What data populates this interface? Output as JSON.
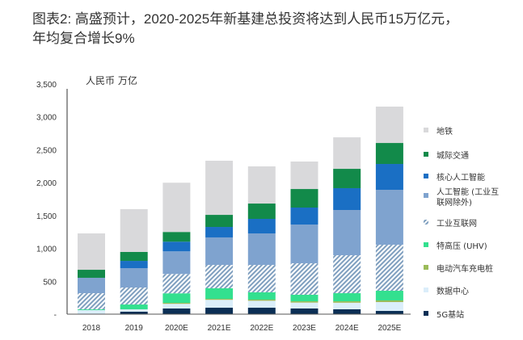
{
  "title": {
    "line1": "图表2: 高盛预计，2020-2025年新基建总投资将达到人民币15万亿元，",
    "line2": "年均复合增长9%"
  },
  "chart_data": {
    "type": "bar",
    "stacked": true,
    "title": "图表2: 高盛预计，2020-2025年新基建总投资将达到人民币15万亿元，年均复合增长9%",
    "unit_label": "人民币 万亿",
    "xlabel": "",
    "ylabel": "人民币 万亿",
    "ylim": [
      0,
      3500
    ],
    "yticks": [
      0,
      500,
      1000,
      1500,
      2000,
      2500,
      3000,
      3500
    ],
    "ytick_labels": [
      "-",
      "500",
      "1,000",
      "1,500",
      "2,000",
      "2,500",
      "3,000",
      "3,500"
    ],
    "grid": false,
    "legend_position": "right",
    "categories": [
      "2018",
      "2019",
      "2020E",
      "2021E",
      "2022E",
      "2023E",
      "2024E",
      "2025E"
    ],
    "series": [
      {
        "name": "5G基站",
        "color": "#0b2f55",
        "pattern": "solid",
        "values": [
          0,
          37,
          86,
          98,
          98,
          86,
          74,
          49
        ]
      },
      {
        "name": "数据中心",
        "color": "#dbeefa",
        "pattern": "solid",
        "values": [
          61,
          37,
          71,
          120,
          106,
          90,
          100,
          135
        ]
      },
      {
        "name": "电动汽车充电桩",
        "color": "#9bbb59",
        "pattern": "solid",
        "values": [
          0,
          0,
          15,
          15,
          17,
          20,
          22,
          25
        ]
      },
      {
        "name": "特高压 (UHV)",
        "color": "#33e08f",
        "pattern": "solid",
        "values": [
          12,
          73,
          145,
          160,
          111,
          99,
          123,
          147
        ]
      },
      {
        "name": "工业互联网",
        "color": "#7f9fbf",
        "pattern": "hatch",
        "values": [
          246,
          258,
          294,
          356,
          417,
          479,
          577,
          700
        ]
      },
      {
        "name": "人工智能 (工业互联网除外)",
        "color": "#7fa3cf",
        "pattern": "solid",
        "values": [
          234,
          295,
          344,
          418,
          479,
          589,
          688,
          835
        ]
      },
      {
        "name": "核心人工智能",
        "color": "#1a6fc4",
        "pattern": "solid",
        "values": [
          0,
          110,
          147,
          159,
          221,
          258,
          332,
          393
        ]
      },
      {
        "name": "城际交通",
        "color": "#128a4a",
        "pattern": "solid",
        "values": [
          122,
          136,
          148,
          184,
          233,
          282,
          294,
          319
        ]
      },
      {
        "name": "地铁",
        "color": "#d9d9db",
        "pattern": "solid",
        "values": [
          553,
          651,
          749,
          823,
          565,
          418,
          479,
          553
        ]
      }
    ],
    "legend_order": [
      "地铁",
      "城际交通",
      "核心人工智能",
      "人工智能 (工业互联网除外)",
      "工业互联网",
      "特高压 (UHV)",
      "电动汽车充电桩",
      "数据中心",
      "5G基站"
    ],
    "legend_lines": {
      "人工智能 (工业互联网除外)": [
        "人工智能 (工业互",
        "联网除外)"
      ]
    }
  }
}
